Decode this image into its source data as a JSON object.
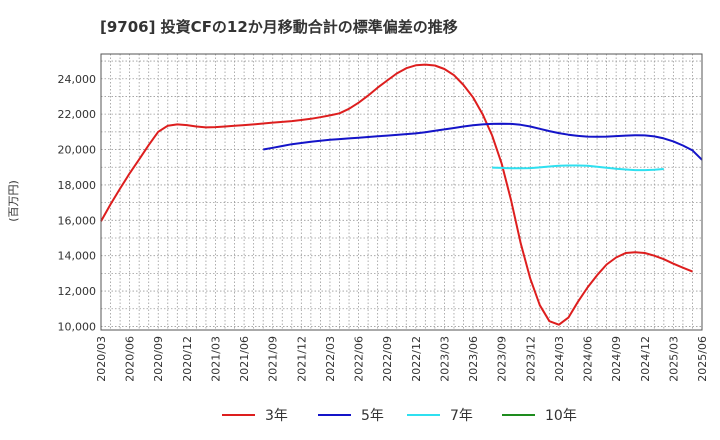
{
  "chart_data": {
    "type": "line",
    "title": "[9706]  投資CFの12か月移動合計の標準偏差の推移",
    "ylabel": "(百万円)",
    "xlabel": "",
    "ylim": [
      9800,
      25400
    ],
    "yticks": [
      10000,
      12000,
      14000,
      16000,
      18000,
      20000,
      22000,
      24000
    ],
    "ytick_labels": [
      "10,000",
      "12,000",
      "14,000",
      "16,000",
      "18,000",
      "20,000",
      "22,000",
      "24,000"
    ],
    "xticks": [
      "2020/03",
      "2020/06",
      "2020/09",
      "2020/12",
      "2021/03",
      "2021/06",
      "2021/09",
      "2021/12",
      "2022/03",
      "2022/06",
      "2022/09",
      "2022/12",
      "2023/03",
      "2023/06",
      "2023/09",
      "2023/12",
      "2024/03",
      "2024/06",
      "2024/09",
      "2024/12",
      "2025/03",
      "2025/06"
    ],
    "grid": true,
    "legend_position": "bottom",
    "series": [
      {
        "name": "3年",
        "color": "#dd1e1e",
        "start": "2020/03",
        "values": [
          15950,
          16900,
          17800,
          18650,
          19450,
          20250,
          21000,
          21350,
          21420,
          21380,
          21300,
          21250,
          21270,
          21300,
          21340,
          21380,
          21420,
          21470,
          21520,
          21560,
          21610,
          21670,
          21740,
          21830,
          21930,
          22050,
          22300,
          22650,
          23050,
          23500,
          23900,
          24300,
          24600,
          24760,
          24800,
          24750,
          24550,
          24200,
          23650,
          22950,
          22000,
          20800,
          19200,
          17100,
          14700,
          12700,
          11200,
          10300,
          10100,
          10500,
          11400,
          12200,
          12900,
          13500,
          13900,
          14150,
          14200,
          14150,
          14000,
          13800,
          13550,
          13320,
          13100
        ]
      },
      {
        "name": "5年",
        "color": "#1414c8",
        "start": "2021/08",
        "values": [
          20000,
          20100,
          20200,
          20300,
          20370,
          20440,
          20500,
          20550,
          20590,
          20630,
          20670,
          20710,
          20750,
          20790,
          20830,
          20870,
          20910,
          20980,
          21060,
          21140,
          21220,
          21300,
          21370,
          21420,
          21450,
          21460,
          21450,
          21400,
          21300,
          21170,
          21040,
          20930,
          20840,
          20770,
          20730,
          20720,
          20730,
          20760,
          20790,
          20810,
          20800,
          20740,
          20630,
          20460,
          20230,
          19950,
          19420
        ]
      },
      {
        "name": "7年",
        "color": "#2fe0f0",
        "start": "2023/08",
        "values": [
          18980,
          18960,
          18940,
          18940,
          18950,
          18990,
          19040,
          19080,
          19100,
          19100,
          19080,
          19030,
          18970,
          18910,
          18870,
          18840,
          18840,
          18860,
          18900
        ]
      },
      {
        "name": "10年",
        "color": "#1e8c1e",
        "start": "2025/03",
        "values": []
      }
    ]
  }
}
